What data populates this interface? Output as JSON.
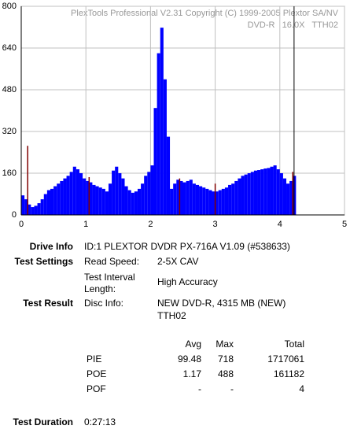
{
  "chart_data": {
    "type": "bar",
    "annotations": [
      "PlexTools Professional V2.31 Copyright (C) 1999-2005 Plextor SA/NV",
      "DVD-R   16.0X   TTH02"
    ],
    "xlim": [
      0,
      5
    ],
    "xticks": [
      0,
      1,
      2,
      3,
      4,
      5
    ],
    "ylim": [
      0,
      800
    ],
    "yticks": [
      0,
      160,
      320,
      480,
      640,
      800
    ],
    "grid": true,
    "bar_width": 0.05,
    "end_line_x": 4.22,
    "series": [
      {
        "color": "#0000ff",
        "x": [
          0,
          0.05,
          0.1,
          0.15,
          0.2,
          0.25,
          0.3,
          0.35,
          0.4,
          0.45,
          0.5,
          0.55,
          0.6,
          0.65,
          0.7,
          0.75,
          0.8,
          0.85,
          0.9,
          0.95,
          1,
          1.05,
          1.1,
          1.15,
          1.2,
          1.25,
          1.3,
          1.35,
          1.4,
          1.45,
          1.5,
          1.55,
          1.6,
          1.65,
          1.7,
          1.75,
          1.8,
          1.85,
          1.9,
          1.95,
          2,
          2.05,
          2.1,
          2.15,
          2.2,
          2.25,
          2.3,
          2.35,
          2.4,
          2.45,
          2.5,
          2.55,
          2.6,
          2.65,
          2.7,
          2.75,
          2.8,
          2.85,
          2.9,
          2.95,
          3,
          3.05,
          3.1,
          3.15,
          3.2,
          3.25,
          3.3,
          3.35,
          3.4,
          3.45,
          3.5,
          3.55,
          3.6,
          3.65,
          3.7,
          3.75,
          3.8,
          3.85,
          3.9,
          3.95,
          4,
          4.05,
          4.1,
          4.15,
          4.2
        ],
        "values": [
          75,
          60,
          40,
          30,
          35,
          45,
          60,
          80,
          95,
          100,
          110,
          120,
          130,
          140,
          150,
          165,
          185,
          175,
          160,
          140,
          130,
          125,
          115,
          110,
          105,
          100,
          90,
          120,
          170,
          185,
          160,
          140,
          110,
          95,
          85,
          90,
          100,
          120,
          150,
          165,
          190,
          410,
          620,
          718,
          520,
          300,
          100,
          120,
          135,
          130,
          125,
          130,
          135,
          120,
          115,
          110,
          105,
          100,
          95,
          90,
          90,
          95,
          100,
          105,
          115,
          120,
          130,
          140,
          150,
          155,
          160,
          165,
          170,
          172,
          175,
          178,
          180,
          185,
          190,
          175,
          160,
          140,
          120,
          130,
          150
        ]
      },
      {
        "color": "#800000",
        "x": [
          0.1,
          1.05,
          2.45,
          3.0,
          4.2
        ],
        "values": [
          265,
          145,
          140,
          120,
          165
        ]
      }
    ]
  },
  "info": {
    "drive": {
      "label": "Drive Info",
      "value": "ID:1 PLEXTOR DVDR PX-716A V1.09 (#538633)"
    },
    "settings": {
      "label": "Test Settings",
      "rows": [
        [
          "Read Speed:",
          "2-5X CAV"
        ],
        [
          "Test Interval",
          "Length:",
          "High Accuracy"
        ]
      ]
    },
    "result": {
      "label": "Test Result",
      "key": "Disc Info:",
      "lines": [
        "NEW DVD-R, 4315 MB (NEW)",
        "TTH02"
      ]
    },
    "stats": {
      "header": [
        "Avg",
        "Max",
        "Total"
      ],
      "rows": [
        [
          "PIE",
          99.48,
          718,
          1717061
        ],
        [
          "POE",
          1.17,
          488,
          161182
        ],
        [
          "POF",
          "-",
          "-",
          4
        ]
      ]
    },
    "duration": {
      "label": "Test Duration",
      "value": "0:27:13"
    }
  }
}
